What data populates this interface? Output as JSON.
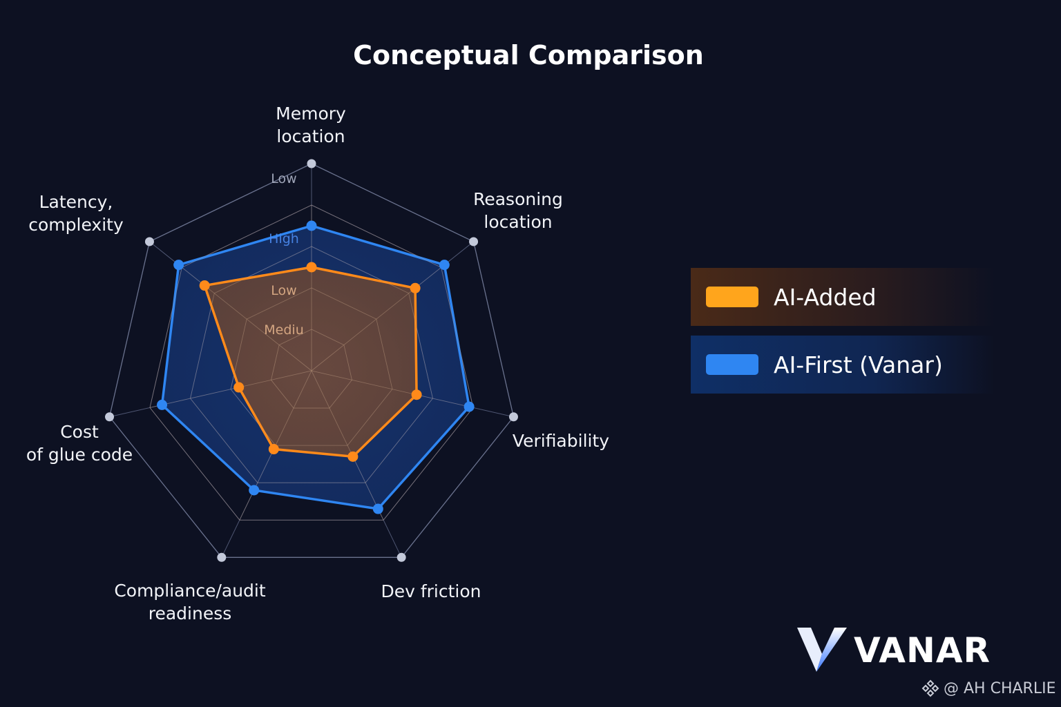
{
  "title": "Conceptual Comparison",
  "chart_data": {
    "type": "radar",
    "axes": [
      "Memory\nlocation",
      "Reasoning\nlocation",
      "Verifiability",
      "Dev friction",
      "Compliance/audit\nreadiness",
      "Cost\nof glue code",
      "Latency,\ncomplexity"
    ],
    "scale_labels": [
      "Low",
      "High",
      "Low",
      "Mediu"
    ],
    "range": [
      0,
      5
    ],
    "series": [
      {
        "name": "AI-Added",
        "color": "#ff8a1a",
        "values": [
          2.5,
          3.2,
          2.6,
          2.3,
          2.1,
          1.8,
          3.3
        ]
      },
      {
        "name": "AI-First (Vanar)",
        "color": "#2f86f2",
        "values": [
          3.5,
          4.1,
          3.9,
          3.7,
          3.2,
          3.7,
          4.1
        ]
      }
    ],
    "legend_position": "right"
  },
  "legend": [
    {
      "label": "AI-Added",
      "color": "#ffa51c"
    },
    {
      "label": "AI-First (Vanar)",
      "color": "#2f86f2"
    }
  ],
  "brand": {
    "name": "VANAR"
  },
  "watermark": {
    "text": "@ AH CHARLIE"
  }
}
